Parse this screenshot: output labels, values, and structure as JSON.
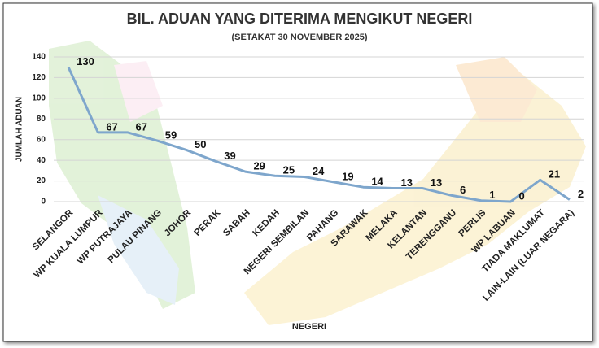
{
  "chart_data": {
    "type": "line",
    "title": "BIL. ADUAN YANG DITERIMA MENGIKUT NEGERI",
    "subtitle": "(SETAKAT 30 NOVEMBER 2025)",
    "y_label": "JUMLAH ADUAN",
    "x_label": "NEGERI",
    "categories": [
      "SELANGOR",
      "WP KUALA LUMPUR",
      "WP PUTRAJAYA",
      "PULAU PINANG",
      "JOHOR",
      "PERAK",
      "SABAH",
      "KEDAH",
      "NEGERI SEMBILAN",
      "PAHANG",
      "SARAWAK",
      "MELAKA",
      "KELANTAN",
      "TERENGGANU",
      "PERLIS",
      "WP LABUAN",
      "TIADA MAKLUMAT",
      "LAIN-LAIN (LUAR NEGARA)"
    ],
    "series": [
      {
        "name": "JUMLAH ADUAN",
        "color": "#7ea6cc",
        "values": [
          130,
          67,
          67,
          59,
          50,
          39,
          29,
          25,
          24,
          19,
          14,
          13,
          13,
          6,
          1,
          0,
          21,
          2
        ]
      }
    ],
    "ylim": [
      0,
      140
    ],
    "yticks": [
      0,
      20,
      40,
      60,
      80,
      100,
      120,
      140
    ],
    "grid": true
  }
}
